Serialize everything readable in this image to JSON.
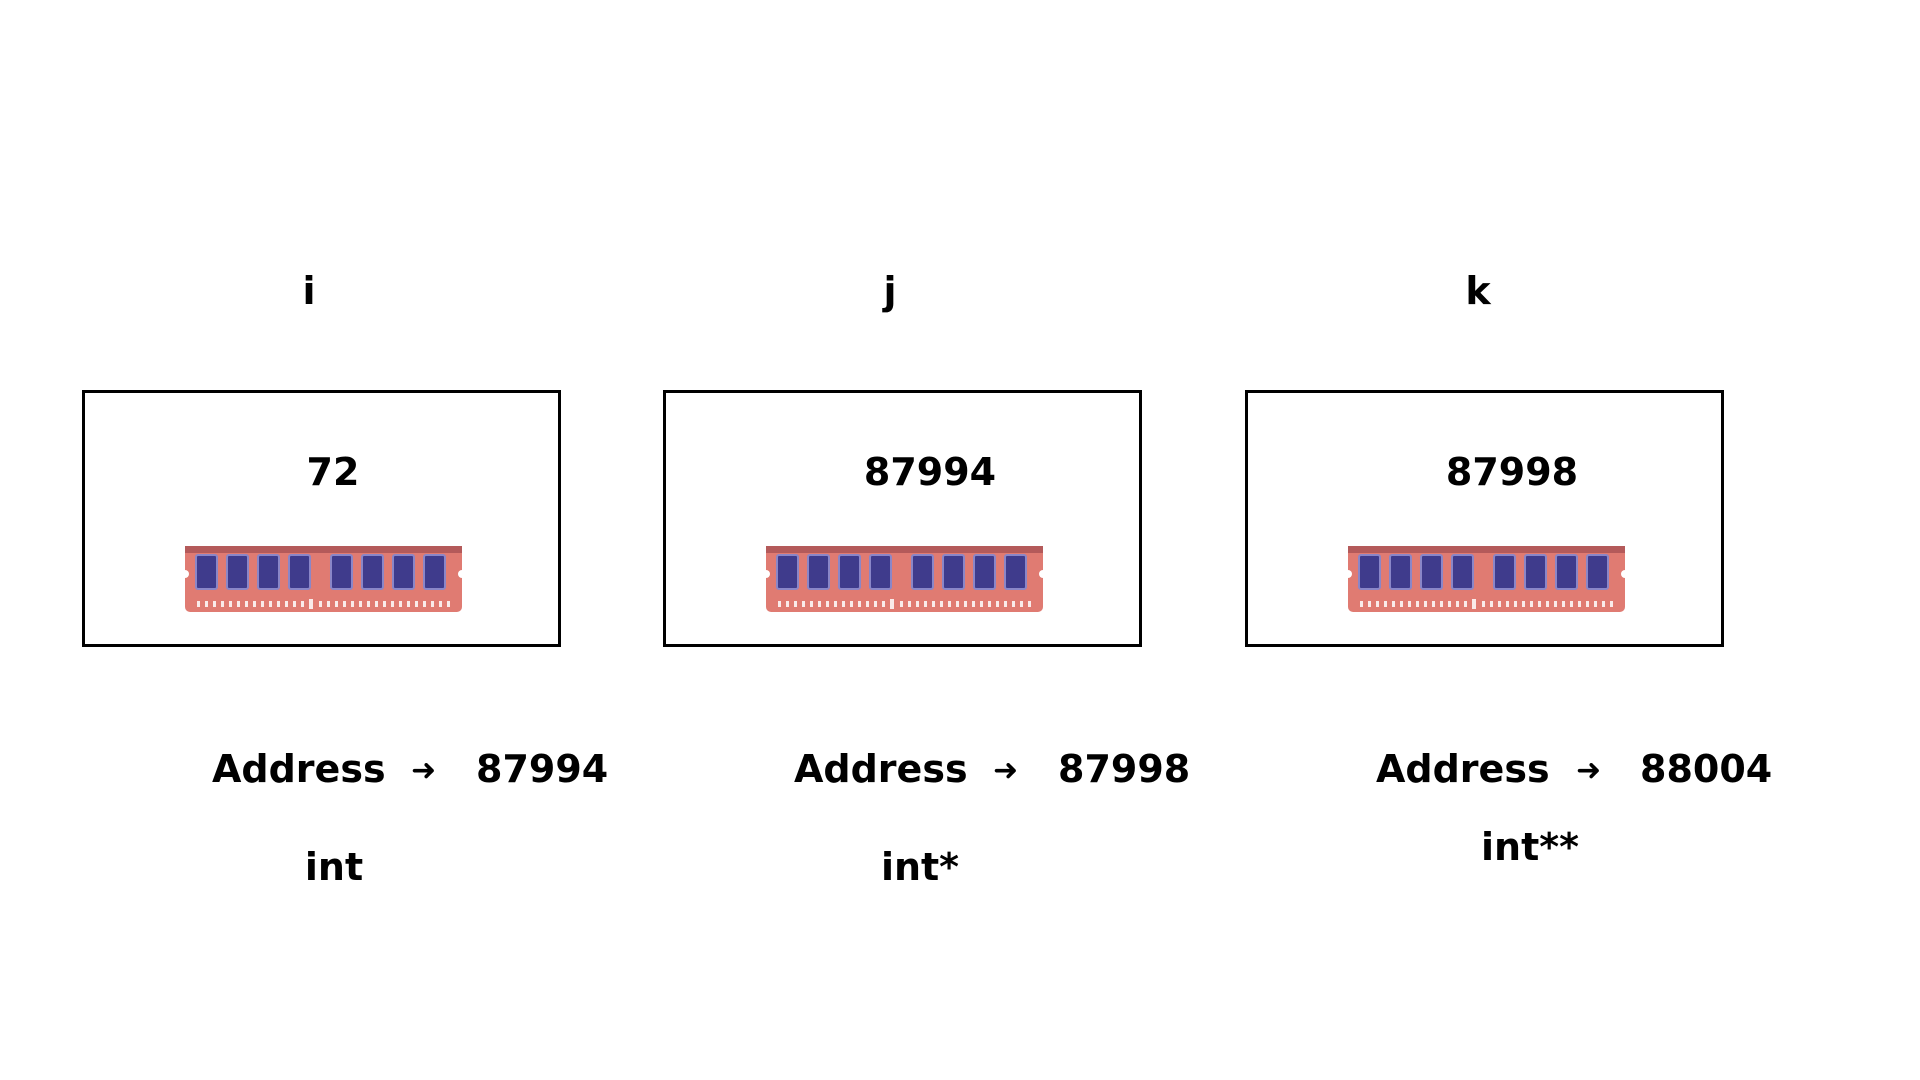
{
  "variables": [
    {
      "name": "i",
      "value": "72",
      "address_label": "Address",
      "arrow": "➜",
      "address": "87994",
      "type": "int"
    },
    {
      "name": "j",
      "value": "87994",
      "address_label": "Address",
      "arrow": "➜",
      "address": "87998",
      "type": "int*"
    },
    {
      "name": "k",
      "value": "87998",
      "address_label": "Address",
      "arrow": "➜",
      "address": "88004",
      "type": "int**"
    }
  ],
  "colors": {
    "ram_board": "#e07b72",
    "ram_chip": "#3f3b8c",
    "box_border": "#000000"
  },
  "icons": {
    "memory": "ram-stick-icon"
  }
}
